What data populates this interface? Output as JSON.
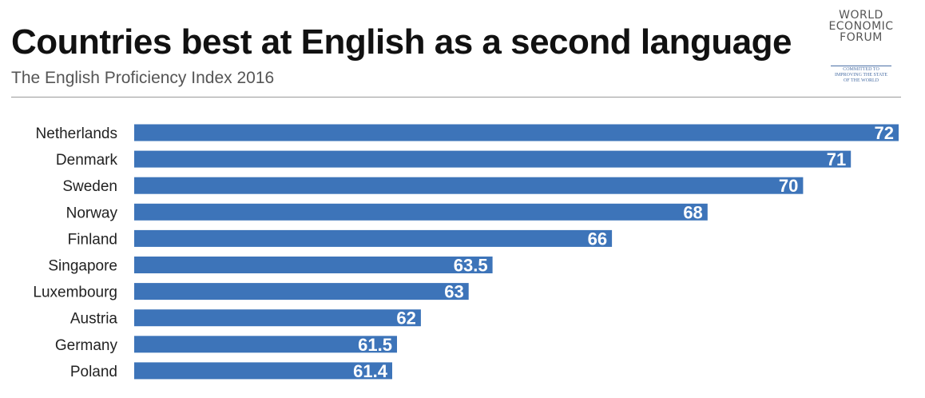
{
  "header": {
    "title": "Countries best at English as a second language",
    "subtitle": "The English Proficiency Index 2016"
  },
  "logo": {
    "lines": [
      "WORLD",
      "ECONOMIC",
      "FORUM"
    ],
    "tagline": [
      "COMMITTED TO",
      "IMPROVING THE STATE",
      "OF THE WORLD"
    ]
  },
  "colors": {
    "bar": "#3d74b9",
    "bar_label": "#ffffff",
    "category_label": "#222222"
  },
  "chart_data": {
    "type": "bar",
    "orientation": "horizontal",
    "title": "Countries best at English as a second language",
    "subtitle": "The English Proficiency Index 2016",
    "xlabel": "",
    "ylabel": "",
    "categories": [
      "Netherlands",
      "Denmark",
      "Sweden",
      "Norway",
      "Finland",
      "Singapore",
      "Luxembourg",
      "Austria",
      "Germany",
      "Poland"
    ],
    "values": [
      72,
      71,
      70,
      68,
      66,
      63.5,
      63,
      62,
      61.5,
      61.4
    ],
    "value_labels": [
      "72",
      "71",
      "70",
      "68",
      "66",
      "63.5",
      "63",
      "62",
      "61.5",
      "61.4"
    ],
    "xlim": [
      56,
      72
    ],
    "grid": false,
    "legend": "none"
  }
}
